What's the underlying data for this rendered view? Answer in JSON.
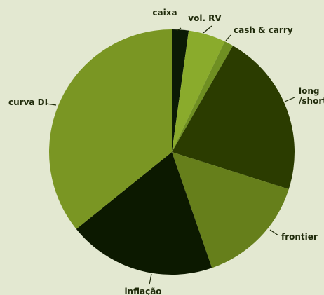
{
  "chart_data": {
    "type": "pie",
    "title": "",
    "slices": [
      {
        "label": "caixa",
        "value": 2.2,
        "color": "#0b1a05"
      },
      {
        "label": "vol. RV",
        "value": 4.9,
        "color": "#8aab2c"
      },
      {
        "label": "cash & carry",
        "value": 1.2,
        "color": "#6f8f22"
      },
      {
        "label": [
          "long",
          "/short"
        ],
        "value": 21.6,
        "color": "#2b3c00"
      },
      {
        "label": "frontier",
        "value": 14.8,
        "color": "#667f1b"
      },
      {
        "label": "inflação",
        "value": 19.5,
        "color": "#0c1900"
      },
      {
        "label": "curva DI",
        "value": 35.8,
        "color": "#7a9623"
      }
    ]
  }
}
